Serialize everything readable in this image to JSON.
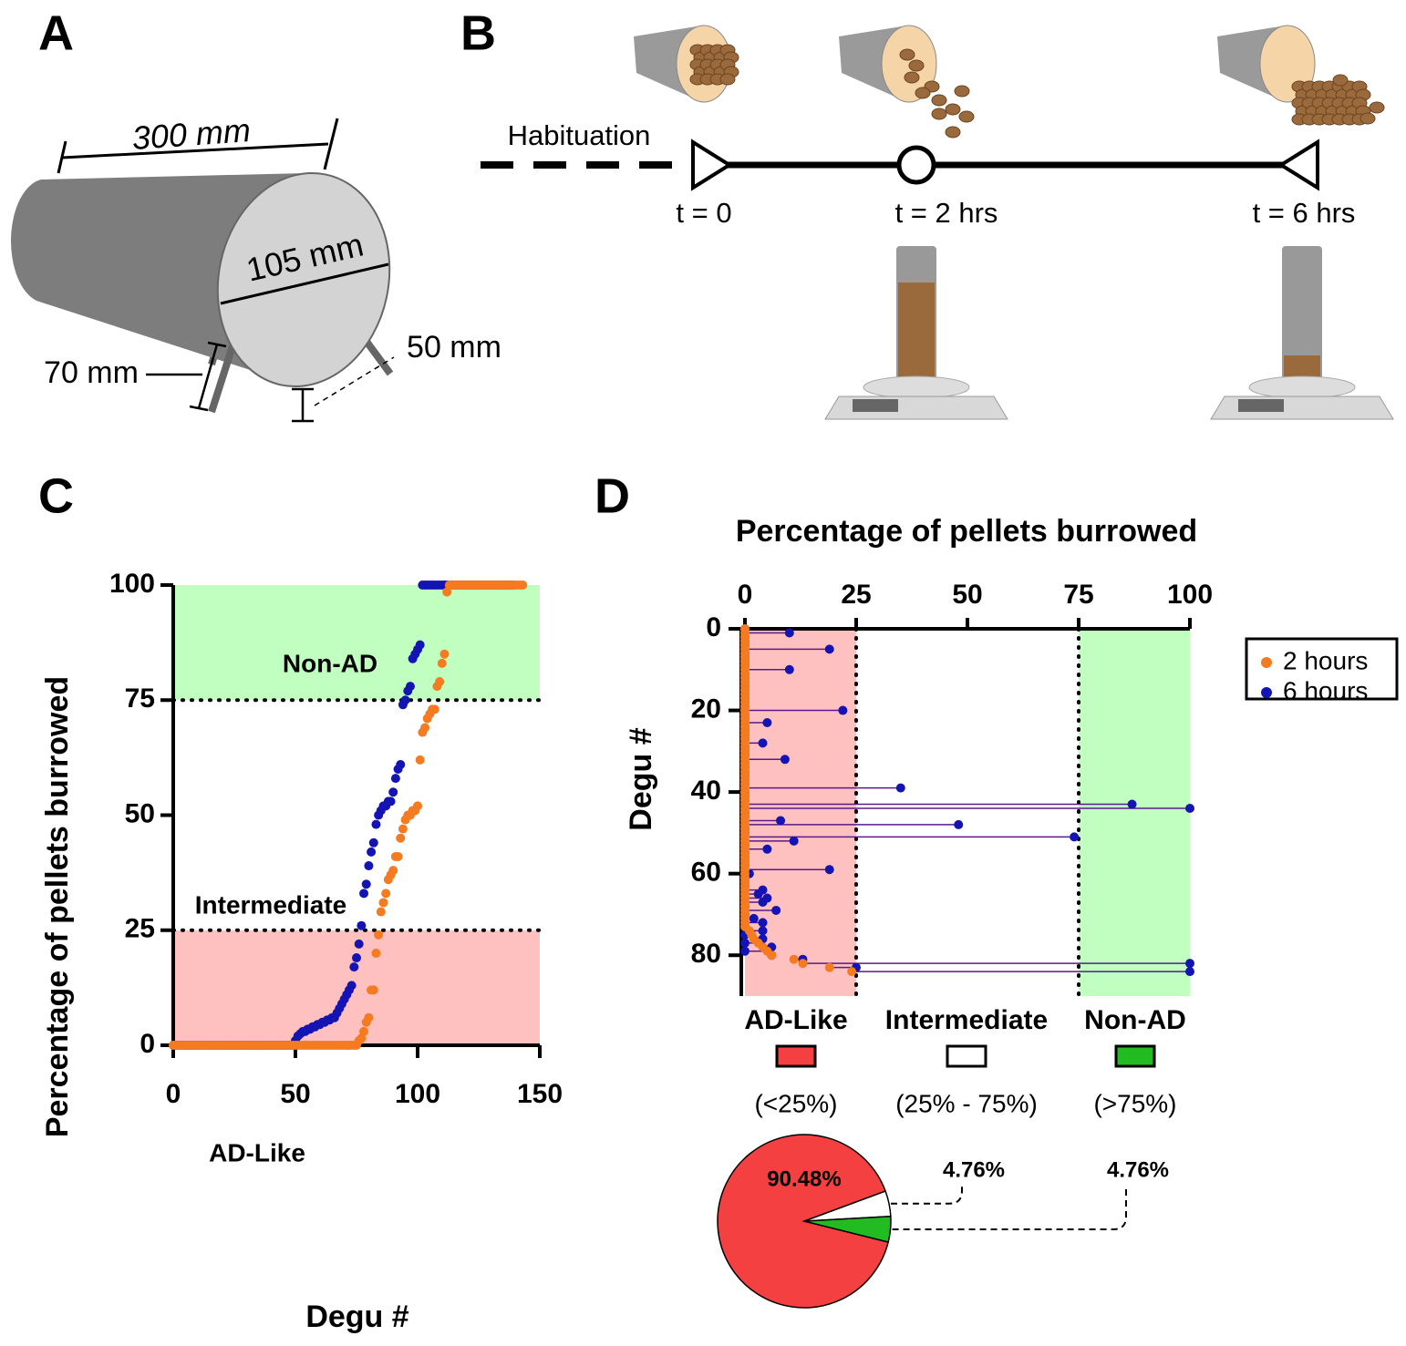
{
  "panel_a": {
    "label": "A",
    "length": "300 mm",
    "diameter": "105 mm",
    "leg_left": "70 mm",
    "leg_right": "50 mm"
  },
  "panel_b": {
    "label": "B",
    "phase": "Habituation",
    "times": [
      "t = 0",
      "t = 2 hrs",
      "t = 6 hrs"
    ]
  },
  "chart_data": [
    {
      "type": "scatter",
      "panel_label": "C",
      "y_label": "Percentage of pellets burrowed",
      "x_label": "Degu #",
      "xlim": [
        0,
        150
      ],
      "xticks": [
        0,
        50,
        100,
        150
      ],
      "ylim": [
        0,
        100
      ],
      "yticks": [
        0,
        25,
        50,
        75,
        100
      ],
      "zones": [
        {
          "name": "AD-Like",
          "range": [
            0,
            25
          ],
          "color": "#ffc0c0"
        },
        {
          "name": "Intermediate",
          "range": [
            25,
            75
          ],
          "color": "#ffffff"
        },
        {
          "name": "Non-AD",
          "range": [
            75,
            100
          ],
          "color": "#c0ffc0"
        }
      ],
      "x": [
        0,
        1,
        2,
        3,
        4,
        5,
        6,
        7,
        8,
        9,
        10,
        11,
        12,
        13,
        14,
        15,
        16,
        17,
        18,
        19,
        20,
        21,
        22,
        23,
        24,
        25,
        26,
        27,
        28,
        29,
        30,
        31,
        32,
        33,
        34,
        35,
        36,
        37,
        38,
        39,
        40,
        41,
        42,
        43,
        44,
        45,
        46,
        47,
        48,
        49,
        50,
        51,
        52,
        53,
        54,
        55,
        56,
        57,
        58,
        59,
        60,
        61,
        62,
        63,
        64,
        65,
        66,
        67,
        68,
        69,
        70,
        71,
        72,
        73,
        74,
        75,
        76,
        77,
        78,
        79,
        80,
        81,
        82,
        83,
        84,
        85,
        86,
        87,
        88,
        89,
        90,
        91,
        92,
        93,
        94,
        95,
        96,
        97,
        98,
        99,
        100,
        101,
        102,
        103,
        104,
        105,
        106,
        107,
        108,
        109,
        110,
        111,
        112,
        113,
        114,
        115,
        116,
        117,
        118,
        119,
        120,
        121,
        122,
        123,
        124,
        125,
        126,
        127,
        128,
        129,
        130,
        131,
        132,
        133,
        134,
        135,
        136,
        137,
        138,
        139,
        140,
        141,
        142,
        143
      ],
      "series": [
        {
          "color": "#f47b20",
          "values": [
            0,
            0,
            0,
            0,
            0,
            0,
            0,
            0,
            0,
            0,
            0,
            0,
            0,
            0,
            0,
            0,
            0,
            0,
            0,
            0,
            0,
            0,
            0,
            0,
            0,
            0,
            0,
            0,
            0,
            0,
            0,
            0,
            0,
            0,
            0,
            0,
            0,
            0,
            0,
            0,
            0,
            0,
            0,
            0,
            0,
            0,
            0,
            0,
            0,
            0,
            0,
            0,
            0,
            0,
            0,
            0,
            0,
            0,
            0,
            0,
            0,
            0,
            0,
            0,
            0,
            0,
            0,
            0,
            0,
            0,
            0,
            0,
            0,
            0,
            0,
            0,
            1,
            1.5,
            3,
            5,
            6,
            12,
            12,
            20,
            24,
            29,
            31,
            33,
            36,
            37,
            38,
            41,
            41,
            45,
            47,
            49,
            50,
            50,
            51,
            51,
            52,
            62,
            68,
            69,
            71,
            72,
            73,
            73,
            78,
            79,
            83,
            85,
            98.5,
            100,
            100,
            100,
            100,
            100,
            100,
            100,
            100,
            100,
            100,
            100,
            100,
            100,
            100,
            100,
            100,
            100,
            100,
            100,
            100,
            100,
            100,
            100,
            100,
            100,
            100,
            100,
            100,
            100,
            100,
            100
          ]
        },
        {
          "color": "#1414b4",
          "values": [
            0,
            0,
            0,
            0,
            0,
            0,
            0,
            0,
            0,
            0,
            0,
            0,
            0,
            0,
            0,
            0,
            0,
            0,
            0,
            0,
            0,
            0,
            0,
            0,
            0,
            0,
            0,
            0,
            0,
            0,
            0,
            0,
            0,
            0,
            0,
            0,
            0,
            0,
            0,
            0,
            0,
            0,
            0,
            0,
            0,
            0,
            0,
            0,
            0,
            0,
            1,
            2,
            2.5,
            3,
            3,
            3.5,
            3.5,
            4,
            4,
            4.5,
            4.5,
            5,
            5,
            5.5,
            5.5,
            6,
            6,
            7,
            8,
            9,
            10,
            11,
            12,
            13,
            17,
            19,
            22,
            26,
            33,
            35,
            39,
            42,
            44,
            48,
            50,
            51,
            52,
            52,
            53,
            53,
            55,
            58,
            60,
            61,
            74,
            75,
            77,
            78,
            84,
            85,
            86,
            87,
            100,
            100,
            100,
            100,
            100,
            100,
            100,
            100,
            100,
            100,
            100,
            100,
            100,
            100,
            100,
            100,
            100,
            100,
            100,
            100,
            100,
            100,
            100,
            100,
            100,
            100,
            100,
            100,
            100,
            100,
            100,
            100,
            100,
            100,
            100,
            100,
            100,
            100
          ]
        }
      ]
    },
    {
      "type": "lollipop",
      "panel_label": "D",
      "title": "Percentage of pellets burrowed",
      "y_label": "Degu #",
      "xlim": [
        0,
        100
      ],
      "xticks": [
        0,
        25,
        50,
        75,
        100
      ],
      "ylim": [
        0,
        90
      ],
      "yticks": [
        0,
        20,
        40,
        60,
        80
      ],
      "zones": [
        {
          "range": [
            0,
            25
          ],
          "color": "#ffc0c0"
        },
        {
          "range": [
            75,
            100
          ],
          "color": "#c0ffc0"
        }
      ],
      "legend": "right",
      "series": [
        {
          "name": "2 hours",
          "color": "#f47b20",
          "values": [
            0,
            0,
            0,
            0,
            0,
            0,
            0,
            0,
            0,
            0,
            0,
            0,
            0,
            0,
            0,
            0,
            0,
            0,
            0,
            0,
            0,
            0,
            0,
            0,
            0,
            0,
            0,
            0,
            0,
            0,
            0,
            0,
            0,
            0,
            0,
            0,
            0,
            0,
            0,
            0,
            0,
            0,
            0,
            0,
            0,
            0,
            0,
            0,
            0,
            0,
            0,
            0,
            0,
            0,
            0,
            0,
            0,
            0,
            0,
            0,
            0,
            0,
            0,
            0,
            0,
            0,
            0,
            0,
            0,
            0,
            0,
            0,
            0,
            0,
            1,
            1.5,
            2,
            3,
            4,
            5,
            6,
            11,
            13,
            19,
            24
          ]
        },
        {
          "name": "6 hours",
          "color": "#1414b4",
          "values": [
            0,
            10,
            0,
            0,
            0,
            19,
            0,
            0,
            0,
            0,
            10,
            0,
            0,
            0,
            0,
            0,
            0,
            0,
            0,
            0,
            22,
            0,
            0,
            5,
            0,
            0,
            0,
            0,
            4,
            0,
            0,
            0,
            9,
            0,
            0,
            0,
            0,
            0,
            0,
            35,
            0,
            0,
            0,
            87,
            100,
            0,
            0,
            8,
            48,
            0,
            0,
            74,
            11,
            0,
            5,
            0,
            0,
            0,
            0,
            19,
            1,
            0,
            0,
            0,
            4,
            3,
            5,
            4,
            0,
            7,
            0,
            2,
            4,
            0,
            4,
            0,
            4,
            0,
            6,
            0,
            6,
            13,
            100,
            25,
            100
          ]
        }
      ]
    },
    {
      "type": "pie",
      "categories": [
        "AD-Like",
        "Intermediate",
        "Non-AD"
      ],
      "ranges": [
        "(<25%)",
        "(25% - 75%)",
        "(>75%)"
      ],
      "colors": [
        "#f44040",
        "#ffffff",
        "#22bb22"
      ],
      "values": [
        90.48,
        4.76,
        4.76
      ],
      "value_labels": [
        "90.48%",
        "4.76%",
        "4.76%"
      ]
    }
  ]
}
